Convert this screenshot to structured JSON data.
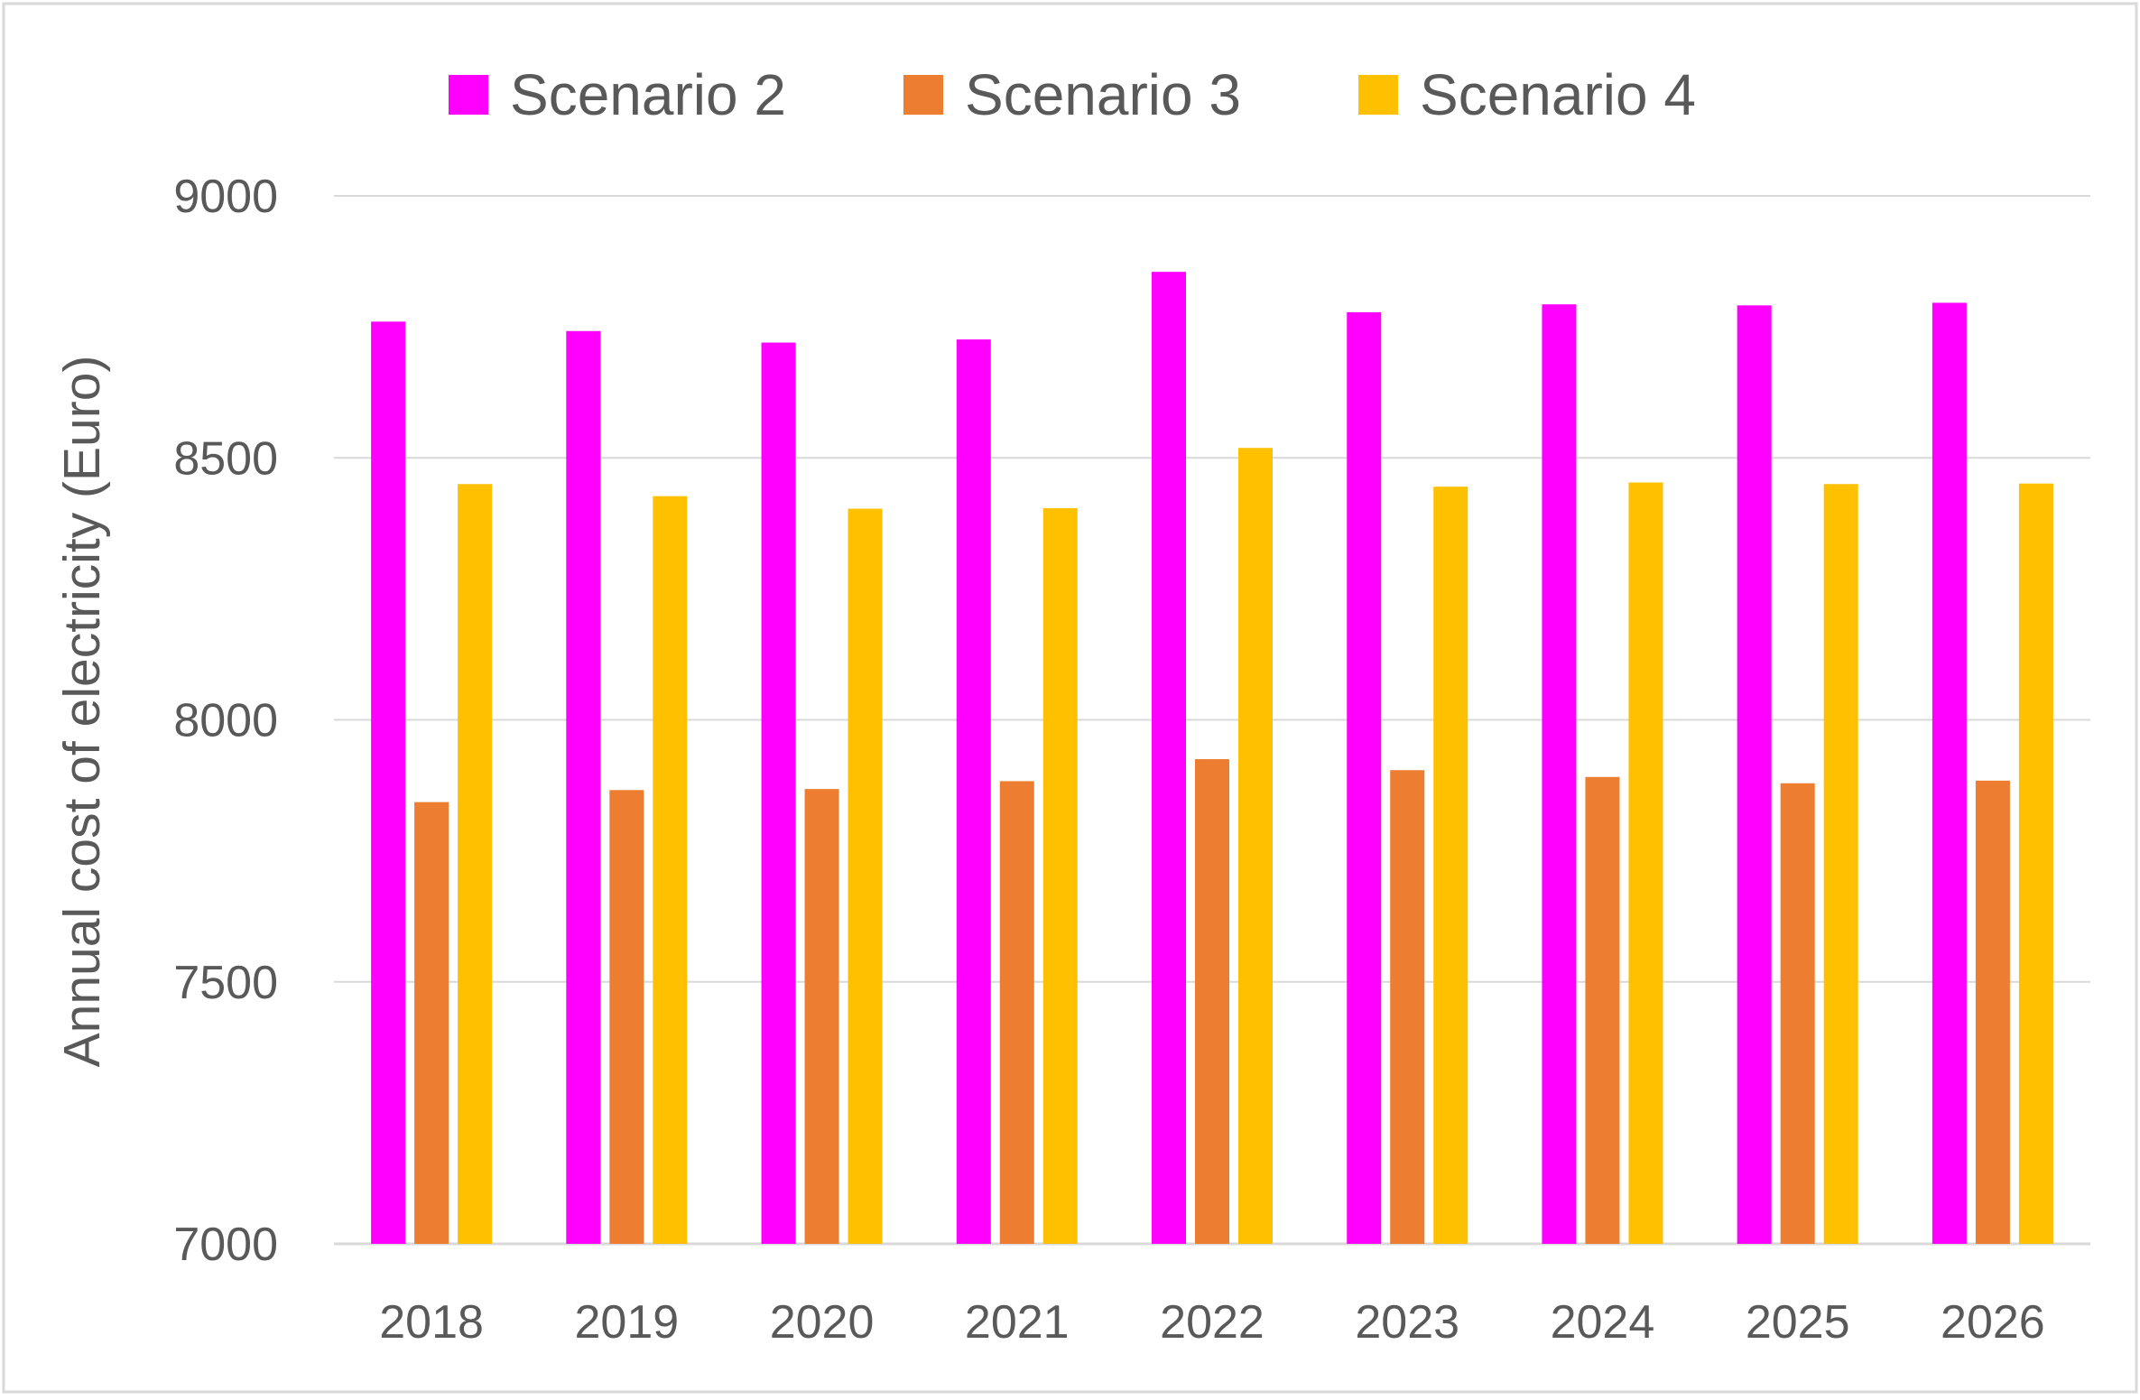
{
  "chart_data": {
    "type": "bar",
    "title": "",
    "xlabel": "",
    "ylabel": "Annual cost of electricity (Euro)",
    "ylim": [
      7000,
      9000
    ],
    "yticks": [
      7000,
      7500,
      8000,
      8500,
      9000
    ],
    "grid": true,
    "legend_position": "top-center",
    "categories": [
      "2018",
      "2019",
      "2020",
      "2021",
      "2022",
      "2023",
      "2024",
      "2025",
      "2026"
    ],
    "series": [
      {
        "name": "Scenario 2",
        "color": "#FF00FF",
        "values": [
          8760,
          8742,
          8720,
          8726,
          8855,
          8778,
          8793,
          8791,
          8796
        ]
      },
      {
        "name": "Scenario 3",
        "color": "#ED7D31",
        "values": [
          7843,
          7866,
          7868,
          7883,
          7925,
          7904,
          7891,
          7879,
          7884
        ]
      },
      {
        "name": "Scenario 4",
        "color": "#FFC000",
        "values": [
          8450,
          8427,
          8403,
          8404,
          8519,
          8445,
          8453,
          8450,
          8451
        ]
      }
    ]
  }
}
